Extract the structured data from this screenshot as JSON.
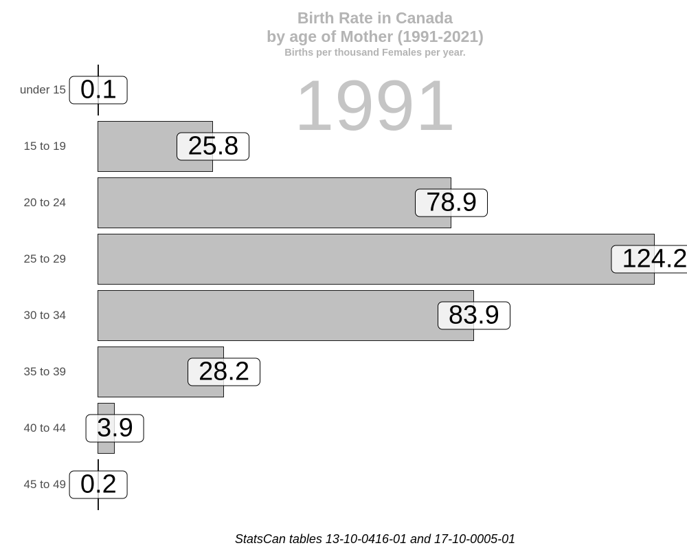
{
  "figure": {
    "title_line1": "Birth Rate in Canada",
    "title_line2": "by age of Mother (1991-2021)",
    "subtitle": "Births per thousand Females per year.",
    "watermark_year": "1991",
    "caption": "StatsCan tables 13-10-0416-01 and 17-10-0005-01"
  },
  "chart_data": {
    "type": "bar",
    "orientation": "horizontal",
    "title": "Birth Rate in Canada by age of Mother (1991-2021)",
    "subtitle": "Births per thousand Females per year.",
    "year_shown": "1991",
    "categories": [
      "under 15",
      "15 to 19",
      "20 to 24",
      "25 to 29",
      "30 to 34",
      "35 to 39",
      "40 to 44",
      "45 to 49"
    ],
    "values": [
      0.1,
      25.8,
      78.9,
      124.2,
      83.9,
      28.2,
      3.9,
      0.2
    ],
    "value_labels": [
      "0.1",
      "25.8",
      "78.9",
      "124.2",
      "83.9",
      "28.2",
      "3.9",
      "0.2"
    ],
    "xlabel": "",
    "ylabel": "",
    "xlim": [
      0,
      130
    ],
    "grid": false,
    "legend": false,
    "bar_fill_color": "#c0c0c0",
    "bar_border_color": "#1a1a1a",
    "value_box_style": "white rounded label centered on bar end"
  },
  "colors": {
    "title_gray": "#b4b4b4",
    "watermark_gray": "#c5c5c5",
    "axis_label_gray": "#4d4d4d",
    "background": "#ffffff"
  }
}
